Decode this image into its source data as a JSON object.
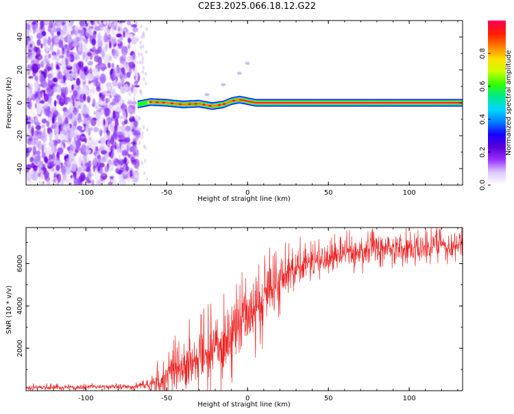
{
  "page": {
    "title": "C2E3.2025.066.18.12.G22"
  },
  "chart_data": [
    {
      "type": "heatmap",
      "title": "C2E3.2025.066.18.12.G22",
      "xlabel": "Height of straight line (km)",
      "ylabel": "Frequency (Hz)",
      "xlim": [
        -137,
        133
      ],
      "ylim": [
        -50,
        50
      ],
      "xticks": [
        -100,
        -50,
        0,
        50,
        100
      ],
      "yticks": [
        -40,
        -20,
        0,
        20,
        40
      ],
      "xtick_labels": [
        "-100",
        "-50",
        "0",
        "50",
        "100"
      ],
      "ytick_labels": [
        "-40",
        "-20",
        "0",
        "20",
        "40"
      ],
      "colorbar": {
        "label": "Normalized spectral amplitude",
        "range": [
          0.0,
          1.0
        ],
        "ticks": [
          0.0,
          0.2,
          0.4,
          0.6,
          0.8
        ],
        "tick_labels": [
          "0.0",
          "0.2",
          "0.4",
          "0.6",
          "0.8"
        ],
        "colors": [
          "#ffffff",
          "#ddc8ff",
          "#9a30ff",
          "#5a00d8",
          "#1500ff",
          "#0080ff",
          "#00d8ff",
          "#00e890",
          "#30ff00",
          "#c8ff00",
          "#ffe000",
          "#ff8000",
          "#ff2000",
          "#ff0050"
        ]
      },
      "noise_region_x": [
        -137,
        -68
      ],
      "signal_line": {
        "onset_x": -68,
        "track": [
          {
            "x": -68,
            "y": -1
          },
          {
            "x": -60,
            "y": 0.5
          },
          {
            "x": -50,
            "y": 0
          },
          {
            "x": -40,
            "y": -1
          },
          {
            "x": -30,
            "y": -0.5
          },
          {
            "x": -22,
            "y": -2
          },
          {
            "x": -15,
            "y": -1
          },
          {
            "x": -10,
            "y": 1
          },
          {
            "x": -5,
            "y": 2
          },
          {
            "x": 0,
            "y": 1
          },
          {
            "x": 5,
            "y": 0
          },
          {
            "x": 133,
            "y": 0
          }
        ],
        "side_branch": [
          {
            "x": -35,
            "y": 0
          },
          {
            "x": -25,
            "y": 5
          },
          {
            "x": -15,
            "y": 11
          },
          {
            "x": -5,
            "y": 18
          },
          {
            "x": 0,
            "y": 24
          }
        ]
      }
    },
    {
      "type": "line",
      "xlabel": "Height of straight line (km)",
      "ylabel": "SNR (10 * v/v)",
      "xlim": [
        -137,
        133
      ],
      "ylim": [
        0,
        7700
      ],
      "xticks": [
        -100,
        -50,
        0,
        50,
        100
      ],
      "yticks": [
        2000,
        4000,
        6000
      ],
      "xtick_labels": [
        "-100",
        "-50",
        "0",
        "50",
        "100"
      ],
      "ytick_labels": [
        "2000",
        "4000",
        "6000"
      ],
      "color": "#ee2222",
      "envelope": [
        {
          "x": -137,
          "base": 150,
          "amp": 200
        },
        {
          "x": -70,
          "base": 200,
          "amp": 200
        },
        {
          "x": -60,
          "base": 300,
          "amp": 300
        },
        {
          "x": -55,
          "base": 500,
          "amp": 1200
        },
        {
          "x": -50,
          "base": 800,
          "amp": 2200
        },
        {
          "x": -40,
          "base": 1200,
          "amp": 2000
        },
        {
          "x": -30,
          "base": 1600,
          "amp": 2300
        },
        {
          "x": -20,
          "base": 2100,
          "amp": 2500
        },
        {
          "x": -10,
          "base": 2700,
          "amp": 2500
        },
        {
          "x": 0,
          "base": 3400,
          "amp": 2500
        },
        {
          "x": 10,
          "base": 4300,
          "amp": 2400
        },
        {
          "x": 20,
          "base": 5200,
          "amp": 1900
        },
        {
          "x": 30,
          "base": 5900,
          "amp": 1400
        },
        {
          "x": 45,
          "base": 6200,
          "amp": 1000
        },
        {
          "x": 60,
          "base": 6500,
          "amp": 1200
        },
        {
          "x": 80,
          "base": 6700,
          "amp": 1100
        },
        {
          "x": 100,
          "base": 6800,
          "amp": 1000
        },
        {
          "x": 133,
          "base": 6900,
          "amp": 900
        }
      ]
    }
  ]
}
